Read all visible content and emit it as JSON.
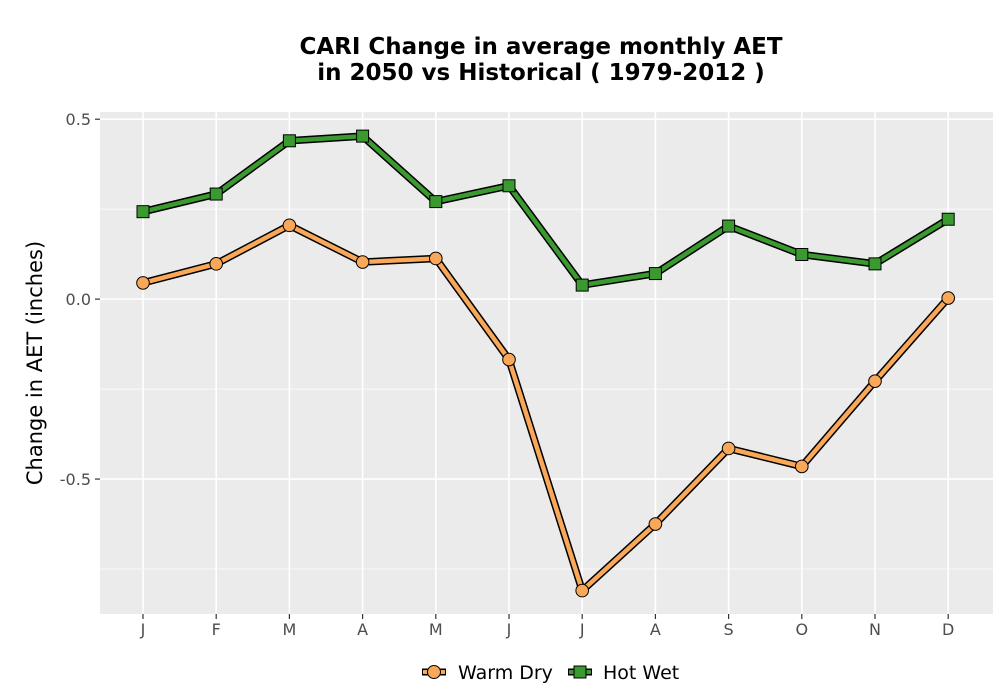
{
  "chart_data": {
    "type": "line",
    "title_line1": "CARI  Change in average monthly AET",
    "title_line2": "in 2050 vs Historical ( 1979-2012 )",
    "ylabel": "Change in AET (inches)",
    "xlabel": "",
    "categories": [
      "J",
      "F",
      "M",
      "A",
      "M",
      "J",
      "J",
      "A",
      "S",
      "O",
      "N",
      "D"
    ],
    "ylim": [
      -0.875,
      0.52
    ],
    "yticks": [
      0.5,
      0.0,
      -0.5
    ],
    "ytick_labels": [
      "0.5",
      "0.0",
      "-0.5"
    ],
    "grid": true,
    "legend_position": "bottom",
    "series": [
      {
        "name": "Warm Dry",
        "marker": "circle",
        "color": "#f9a85a",
        "values": [
          0.045,
          0.098,
          0.205,
          0.103,
          0.113,
          -0.168,
          -0.81,
          -0.625,
          -0.415,
          -0.465,
          -0.228,
          0.003
        ]
      },
      {
        "name": "Hot Wet",
        "marker": "square",
        "color": "#3a9a2f",
        "values": [
          0.243,
          0.292,
          0.44,
          0.453,
          0.271,
          0.315,
          0.039,
          0.071,
          0.203,
          0.124,
          0.098,
          0.222
        ]
      }
    ]
  }
}
